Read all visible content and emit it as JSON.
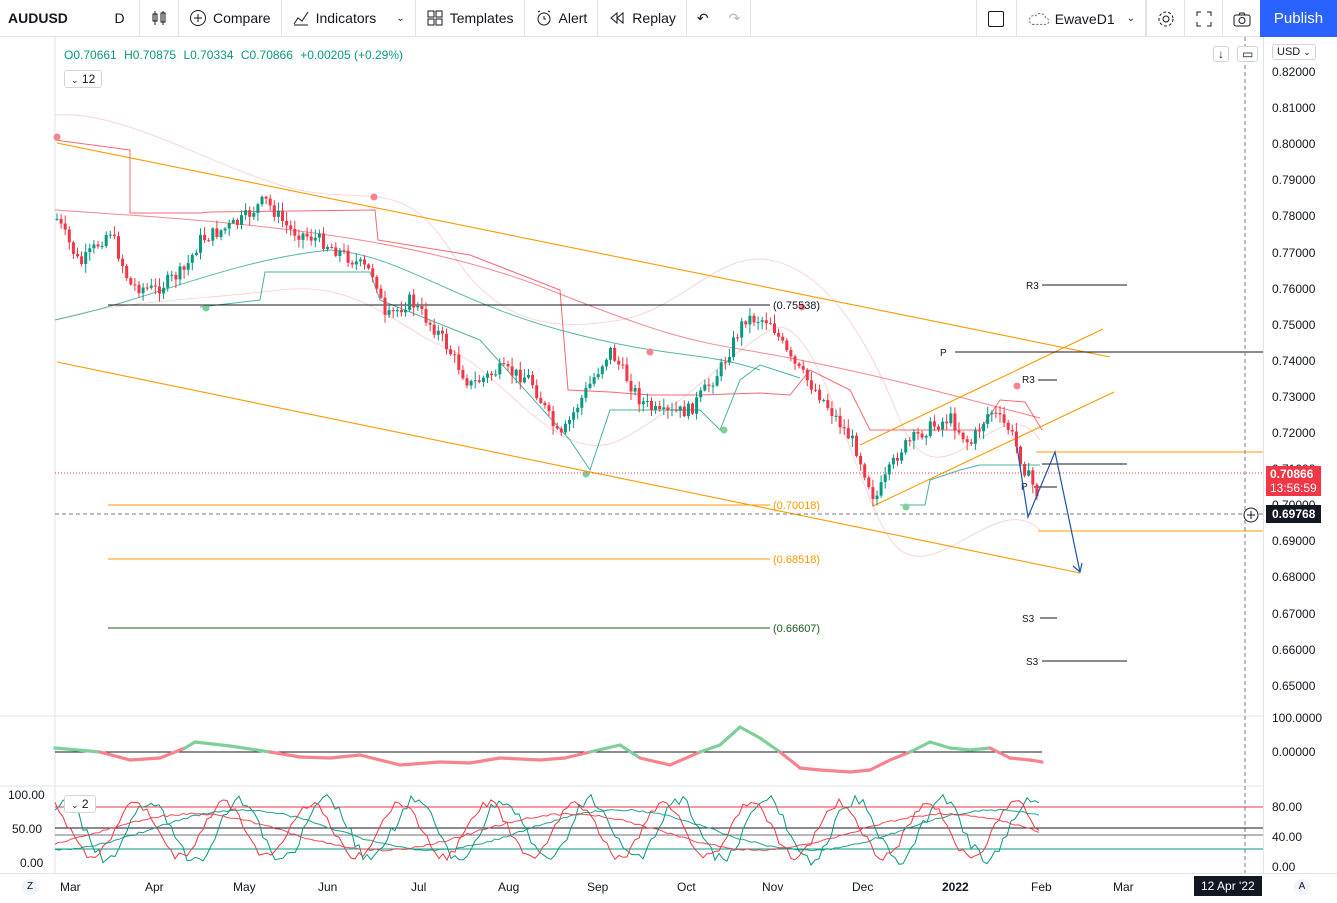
{
  "toolbar": {
    "symbol": "AUDUSD",
    "interval": "D",
    "compare": "Compare",
    "indicators": "Indicators",
    "templates": "Templates",
    "alert": "Alert",
    "replay": "Replay",
    "layout_name": "EwaveD1",
    "publish": "Publish"
  },
  "legend": {
    "open": "O0.70661",
    "high": "H0.70875",
    "low": "L0.70334",
    "close": "C0.70866",
    "change": "+0.00205 (+0.29%)"
  },
  "indicator_count": "12",
  "pane3_count": "2",
  "currency": "USD",
  "price_axis": [
    "0.82000",
    "0.81000",
    "0.80000",
    "0.79000",
    "0.78000",
    "0.77000",
    "0.76000",
    "0.75000",
    "0.74000",
    "0.73000",
    "0.72000",
    "0.71000",
    "0.70000",
    "0.69000",
    "0.68000",
    "0.67000",
    "0.66000",
    "0.65000"
  ],
  "osc_axis": [
    "100.0000",
    "0.00000"
  ],
  "stoch_axis_left": [
    "100.00",
    "50.00",
    "0.00"
  ],
  "stoch_axis_right": [
    "80.00",
    "40.00",
    "0.00"
  ],
  "time_axis": [
    "Mar",
    "Apr",
    "May",
    "Jun",
    "Jul",
    "Aug",
    "Sep",
    "Oct",
    "Nov",
    "Dec",
    "2022",
    "Feb",
    "Mar"
  ],
  "time_cursor": "12 Apr '22",
  "last_price": "0.70866",
  "countdown": "13:56:59",
  "cursor_price": "0.69768",
  "fib_levels": [
    "(0.75538)",
    "(0.70018)",
    "(0.68518)",
    "(0.66607)"
  ],
  "pivot_labels": {
    "r3a": "R3",
    "p": "P",
    "r3b": "R3",
    "p2": "P",
    "s3a": "S3",
    "s3b": "S3"
  },
  "corner_left": "Z",
  "corner_right": "A",
  "colors": {
    "up": "#089981",
    "down": "#f23645",
    "channel": "#ff9800",
    "accent": "#2962ff"
  }
}
